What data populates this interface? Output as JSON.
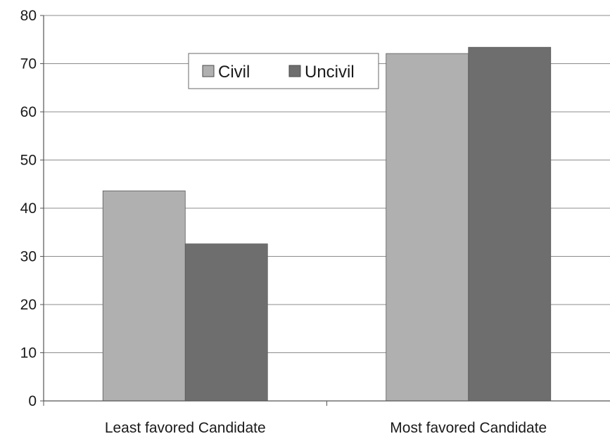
{
  "chart_data": {
    "type": "bar",
    "title": "",
    "xlabel": "",
    "ylabel": "",
    "categories": [
      "Least favored Candidate",
      "Most favored Candidate"
    ],
    "series": [
      {
        "name": "Civil",
        "values": [
          43.6,
          72.1
        ],
        "color": "#b0b0b0"
      },
      {
        "name": "Uncivil",
        "values": [
          32.6,
          73.4
        ],
        "color": "#6e6e6e"
      }
    ],
    "ylim": [
      0,
      80
    ],
    "yticks": [
      0,
      10,
      20,
      30,
      40,
      50,
      60,
      70,
      80
    ],
    "grid": true,
    "legend_position": "top-center"
  }
}
